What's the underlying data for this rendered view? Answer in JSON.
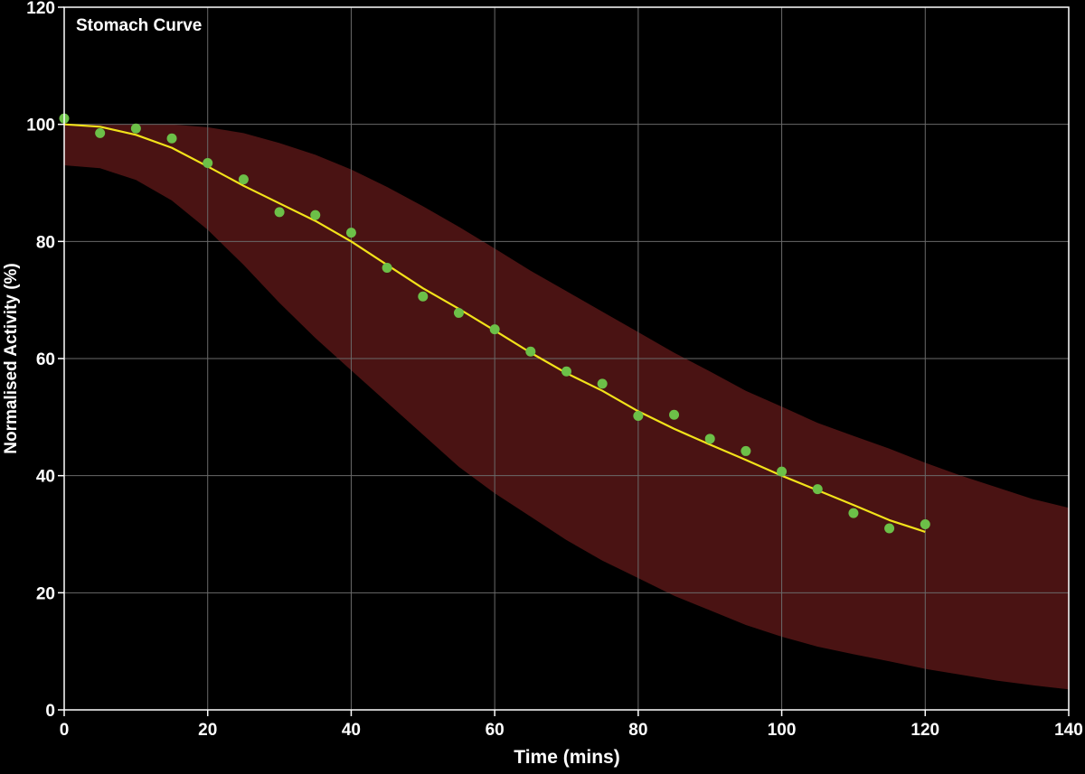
{
  "chart_data": {
    "type": "line",
    "title": "Stomach Curve",
    "xlabel": "Time (mins)",
    "ylabel": "Normalised Activity (%)",
    "xlim": [
      0,
      140
    ],
    "ylim": [
      0,
      120
    ],
    "xticks": [
      0,
      20,
      40,
      60,
      80,
      100,
      120,
      140
    ],
    "yticks": [
      0,
      20,
      40,
      60,
      80,
      100,
      120
    ],
    "grid": true,
    "colors": {
      "background": "#000000",
      "grid": "#6a6a6a",
      "axis": "#ffffff",
      "band": "#4a1313",
      "fit": "#f2e21a",
      "points": "#6cc048"
    },
    "points": {
      "x": [
        0,
        5,
        10,
        15,
        20,
        25,
        30,
        35,
        40,
        45,
        50,
        55,
        60,
        65,
        70,
        75,
        80,
        85,
        90,
        95,
        100,
        105,
        110,
        115,
        120
      ],
      "y": [
        101,
        98.5,
        99.3,
        97.6,
        93.4,
        90.6,
        85.0,
        84.5,
        81.5,
        75.5,
        70.6,
        67.8,
        65.0,
        61.2,
        57.8,
        55.7,
        50.2,
        50.4,
        46.3,
        44.2,
        40.7,
        37.7,
        33.6,
        31.0,
        31.7
      ]
    },
    "fit": {
      "x": [
        0,
        5,
        10,
        15,
        20,
        25,
        30,
        35,
        40,
        45,
        50,
        55,
        60,
        65,
        70,
        75,
        80,
        85,
        90,
        95,
        100,
        105,
        110,
        115,
        120
      ],
      "y": [
        100,
        99.6,
        98.2,
        96.0,
        92.8,
        89.5,
        86.5,
        83.5,
        80.0,
        76.0,
        72.0,
        68.5,
        64.8,
        61.0,
        57.5,
        54.5,
        51.0,
        48.0,
        45.3,
        42.7,
        40.0,
        37.5,
        35.0,
        32.4,
        30.4
      ]
    },
    "band": {
      "x": [
        0,
        5,
        10,
        15,
        20,
        25,
        30,
        35,
        40,
        45,
        50,
        55,
        60,
        65,
        70,
        75,
        80,
        85,
        90,
        95,
        100,
        105,
        110,
        115,
        120,
        125,
        130,
        135,
        140
      ],
      "upper": [
        100,
        100,
        100,
        100,
        99.5,
        98.5,
        96.8,
        94.8,
        92.3,
        89.3,
        86.0,
        82.5,
        78.8,
        75.0,
        71.5,
        68.0,
        64.5,
        61.0,
        57.8,
        54.5,
        51.8,
        49.0,
        46.8,
        44.6,
        42.2,
        40.0,
        38.0,
        36.0,
        34.5
      ],
      "lower": [
        93,
        92.5,
        90.5,
        87.0,
        82.0,
        76.0,
        69.5,
        63.5,
        58.0,
        52.5,
        47.0,
        41.5,
        37.0,
        33.0,
        29.0,
        25.5,
        22.5,
        19.5,
        17.0,
        14.5,
        12.5,
        10.8,
        9.5,
        8.3,
        7.0,
        6.0,
        5.0,
        4.2,
        3.5
      ]
    }
  }
}
